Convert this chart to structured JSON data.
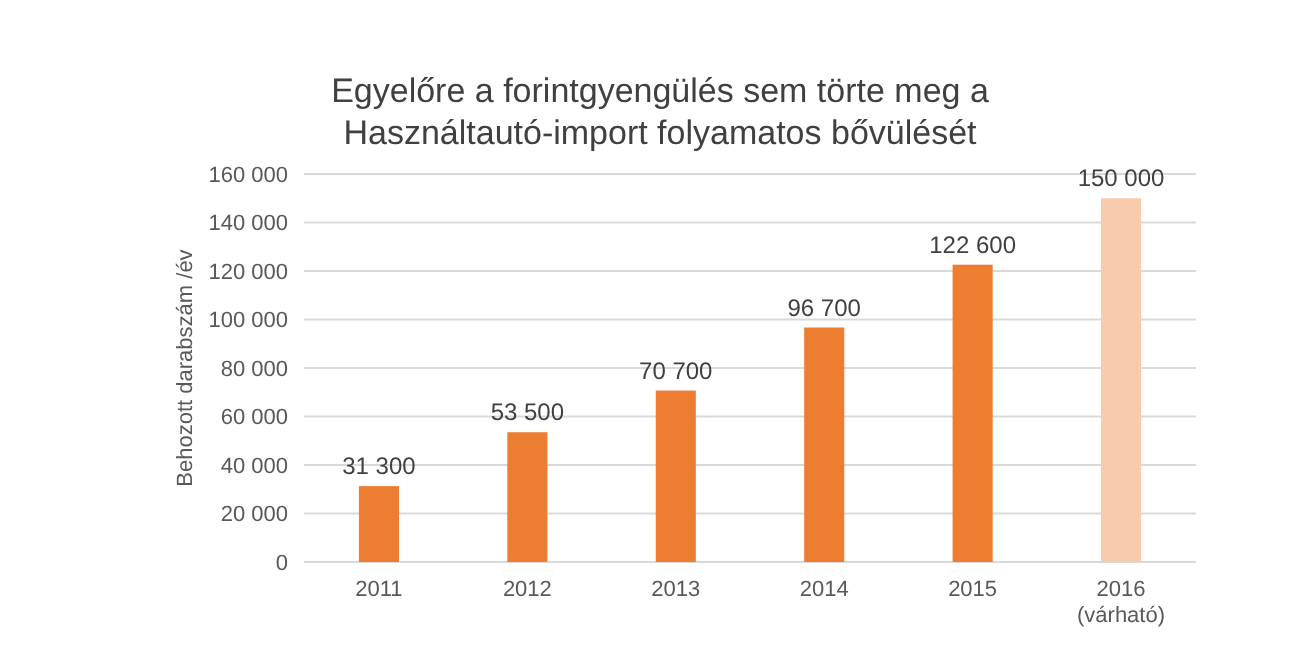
{
  "chart_data": {
    "type": "bar",
    "title": "Egyelőre a forintgyengülés sem törte meg a\nHasználtautó-import folyamatos bővülését",
    "ylabel": "Behozott darabszám /év",
    "categories": [
      "2011",
      "2012",
      "2013",
      "2014",
      "2015",
      "2016\n(várható)"
    ],
    "values": [
      31300,
      53500,
      70700,
      96700,
      122600,
      150000
    ],
    "colors": [
      "#ed7d31",
      "#ed7d31",
      "#ed7d31",
      "#ed7d31",
      "#ed7d31",
      "#f8cbad"
    ],
    "value_labels": [
      "31 300",
      "53 500",
      "70 700",
      "96 700",
      "122 600",
      "150 000"
    ],
    "ylim": [
      0,
      160000
    ],
    "yticks": [
      {
        "value": 0,
        "label": "0"
      },
      {
        "value": 20000,
        "label": "20 000"
      },
      {
        "value": 40000,
        "label": "40 000"
      },
      {
        "value": 60000,
        "label": "60 000"
      },
      {
        "value": 80000,
        "label": "80 000"
      },
      {
        "value": 100000,
        "label": "100 000"
      },
      {
        "value": 120000,
        "label": "120 000"
      },
      {
        "value": 140000,
        "label": "140 000"
      },
      {
        "value": 160000,
        "label": "160 000"
      }
    ],
    "grid": "y"
  }
}
